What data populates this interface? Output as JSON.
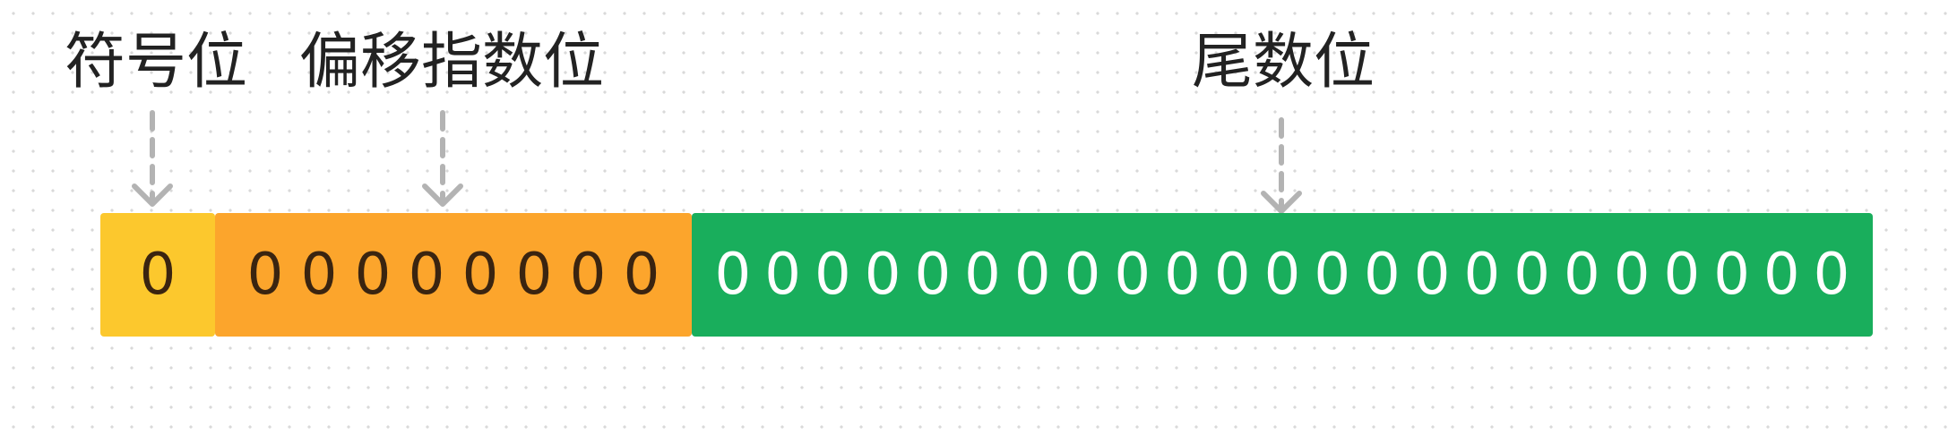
{
  "labels": {
    "sign": "符号位",
    "exponent": "偏移指数位",
    "mantissa": "尾数位"
  },
  "colors": {
    "sign": "#FCC82D",
    "exponent": "#FCA52C",
    "mantissa": "#19AE5C",
    "dark_text": "#3A2410",
    "light_text": "#FFFFFF",
    "arrow": "#B3B3B3"
  },
  "segments": {
    "sign": {
      "bits": [
        "0"
      ]
    },
    "exponent": {
      "bits": [
        "0",
        "0",
        "0",
        "0",
        "0",
        "0",
        "0",
        "0"
      ]
    },
    "mantissa": {
      "bits": [
        "0",
        "0",
        "0",
        "0",
        "0",
        "0",
        "0",
        "0",
        "0",
        "0",
        "0",
        "0",
        "0",
        "0",
        "0",
        "0",
        "0",
        "0",
        "0",
        "0",
        "0",
        "0",
        "0"
      ]
    }
  }
}
